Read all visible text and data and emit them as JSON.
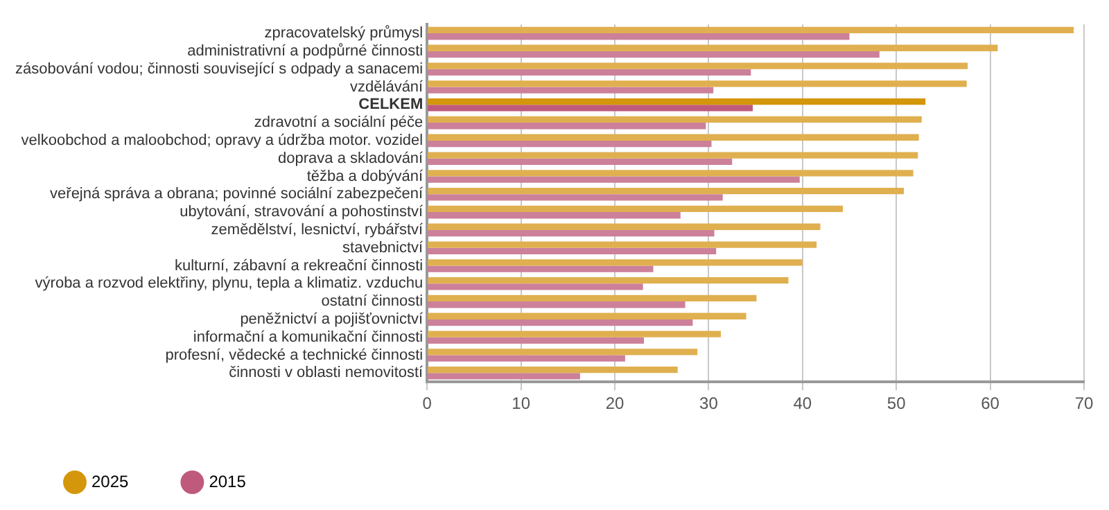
{
  "chart_data": {
    "type": "bar",
    "orientation": "horizontal",
    "categories": [
      "zpracovatelský průmysl",
      "administrativní a podpůrné činnosti",
      "zásobování vodou; činnosti související s odpady a sanacemi",
      "vzdělávání",
      "CELKEM",
      "zdravotní a sociální péče",
      "velkoobchod a maloobchod; opravy a údržba motor. vozidel",
      "doprava a skladování",
      "těžba a dobývání",
      "veřejná správa a obrana; povinné sociální zabezpečení",
      "ubytování, stravování a pohostinství",
      "zemědělství, lesnictví, rybářství",
      "stavebnictví",
      "kulturní, zábavní a rekreační činnosti",
      "výroba a rozvod elektřiny, plynu, tepla a klimatiz. vzduchu",
      "ostatní činnosti",
      "peněžnictví a pojišťovnictví",
      "informační a komunikační činnosti",
      "profesní, vědecké a technické činnosti",
      "činnosti v oblasti nemovitostí"
    ],
    "series": [
      {
        "name": "2025",
        "color": "#d4960a",
        "colors": [
          "#e0b050",
          "#e0b050",
          "#e0b050",
          "#e0b050",
          "#d4960a",
          "#e0b050",
          "#e0b050",
          "#e0b050",
          "#e0b050",
          "#e0b050",
          "#e0b050",
          "#e0b050",
          "#e0b050",
          "#e0b050",
          "#e0b050",
          "#e0b050",
          "#e0b050",
          "#e0b050",
          "#e0b050",
          "#e0b050"
        ],
        "values": [
          68.9,
          60.8,
          57.6,
          57.5,
          53.1,
          52.7,
          52.4,
          52.3,
          51.8,
          50.8,
          44.3,
          41.9,
          41.5,
          40.0,
          38.5,
          35.1,
          34.0,
          31.3,
          28.8,
          26.7
        ]
      },
      {
        "name": "2015",
        "color": "#c05a7c",
        "colors": [
          "#cc809a",
          "#cc809a",
          "#cc809a",
          "#cc809a",
          "#c05a7c",
          "#cc809a",
          "#cc809a",
          "#cc809a",
          "#cc809a",
          "#cc809a",
          "#cc809a",
          "#cc809a",
          "#cc809a",
          "#cc809a",
          "#cc809a",
          "#cc809a",
          "#cc809a",
          "#cc809a",
          "#cc809a",
          "#cc809a"
        ],
        "values": [
          45.0,
          48.2,
          34.5,
          30.5,
          34.7,
          29.7,
          30.3,
          32.5,
          39.7,
          31.5,
          27.0,
          30.6,
          30.8,
          24.1,
          23.0,
          27.5,
          28.3,
          23.1,
          21.1,
          16.3
        ]
      }
    ],
    "xlim": [
      0,
      70
    ],
    "xticks": [
      0,
      10,
      20,
      30,
      40,
      50,
      60,
      70
    ],
    "grid": "x",
    "legend": "bottom left"
  }
}
